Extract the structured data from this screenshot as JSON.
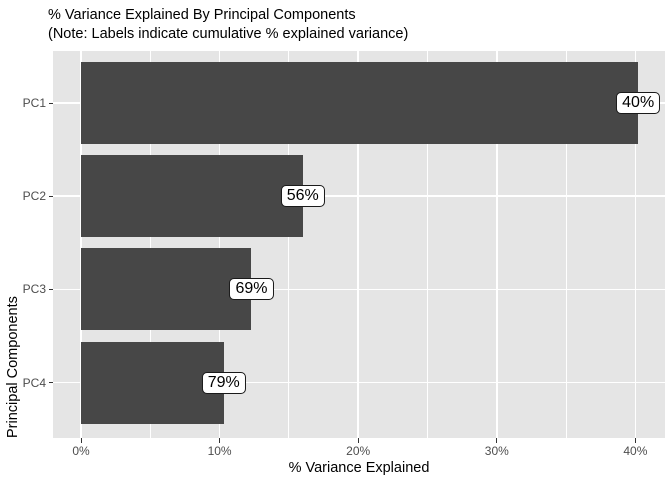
{
  "chart_data": {
    "type": "bar",
    "orientation": "horizontal",
    "title": "% Variance Explained By Principal Components",
    "subtitle": "(Note: Labels indicate cumulative % explained variance)",
    "xlabel": "% Variance Explained",
    "ylabel": "Principal Components",
    "categories": [
      "PC1",
      "PC2",
      "PC3",
      "PC4"
    ],
    "values": [
      40.2,
      16.0,
      12.3,
      10.3
    ],
    "cumulative_labels": [
      "40%",
      "56%",
      "69%",
      "79%"
    ],
    "x_ticks": [
      {
        "value": 0,
        "label": "0%"
      },
      {
        "value": 10,
        "label": "10%"
      },
      {
        "value": 20,
        "label": "20%"
      },
      {
        "value": 30,
        "label": "30%"
      },
      {
        "value": 40,
        "label": "40%"
      }
    ],
    "x_minor_values": [
      5,
      15,
      25,
      35
    ],
    "xlim": [
      -2.1,
      42.2
    ],
    "grid": true,
    "legend": false,
    "colors": {
      "bar": "#474747",
      "panel_bg": "#e5e5e5",
      "gridline": "#ffffff",
      "tick_text": "#4d4d4d",
      "title_text": "#000000",
      "label_box_bg": "#ffffff",
      "label_box_border": "#1a1a1a"
    }
  }
}
